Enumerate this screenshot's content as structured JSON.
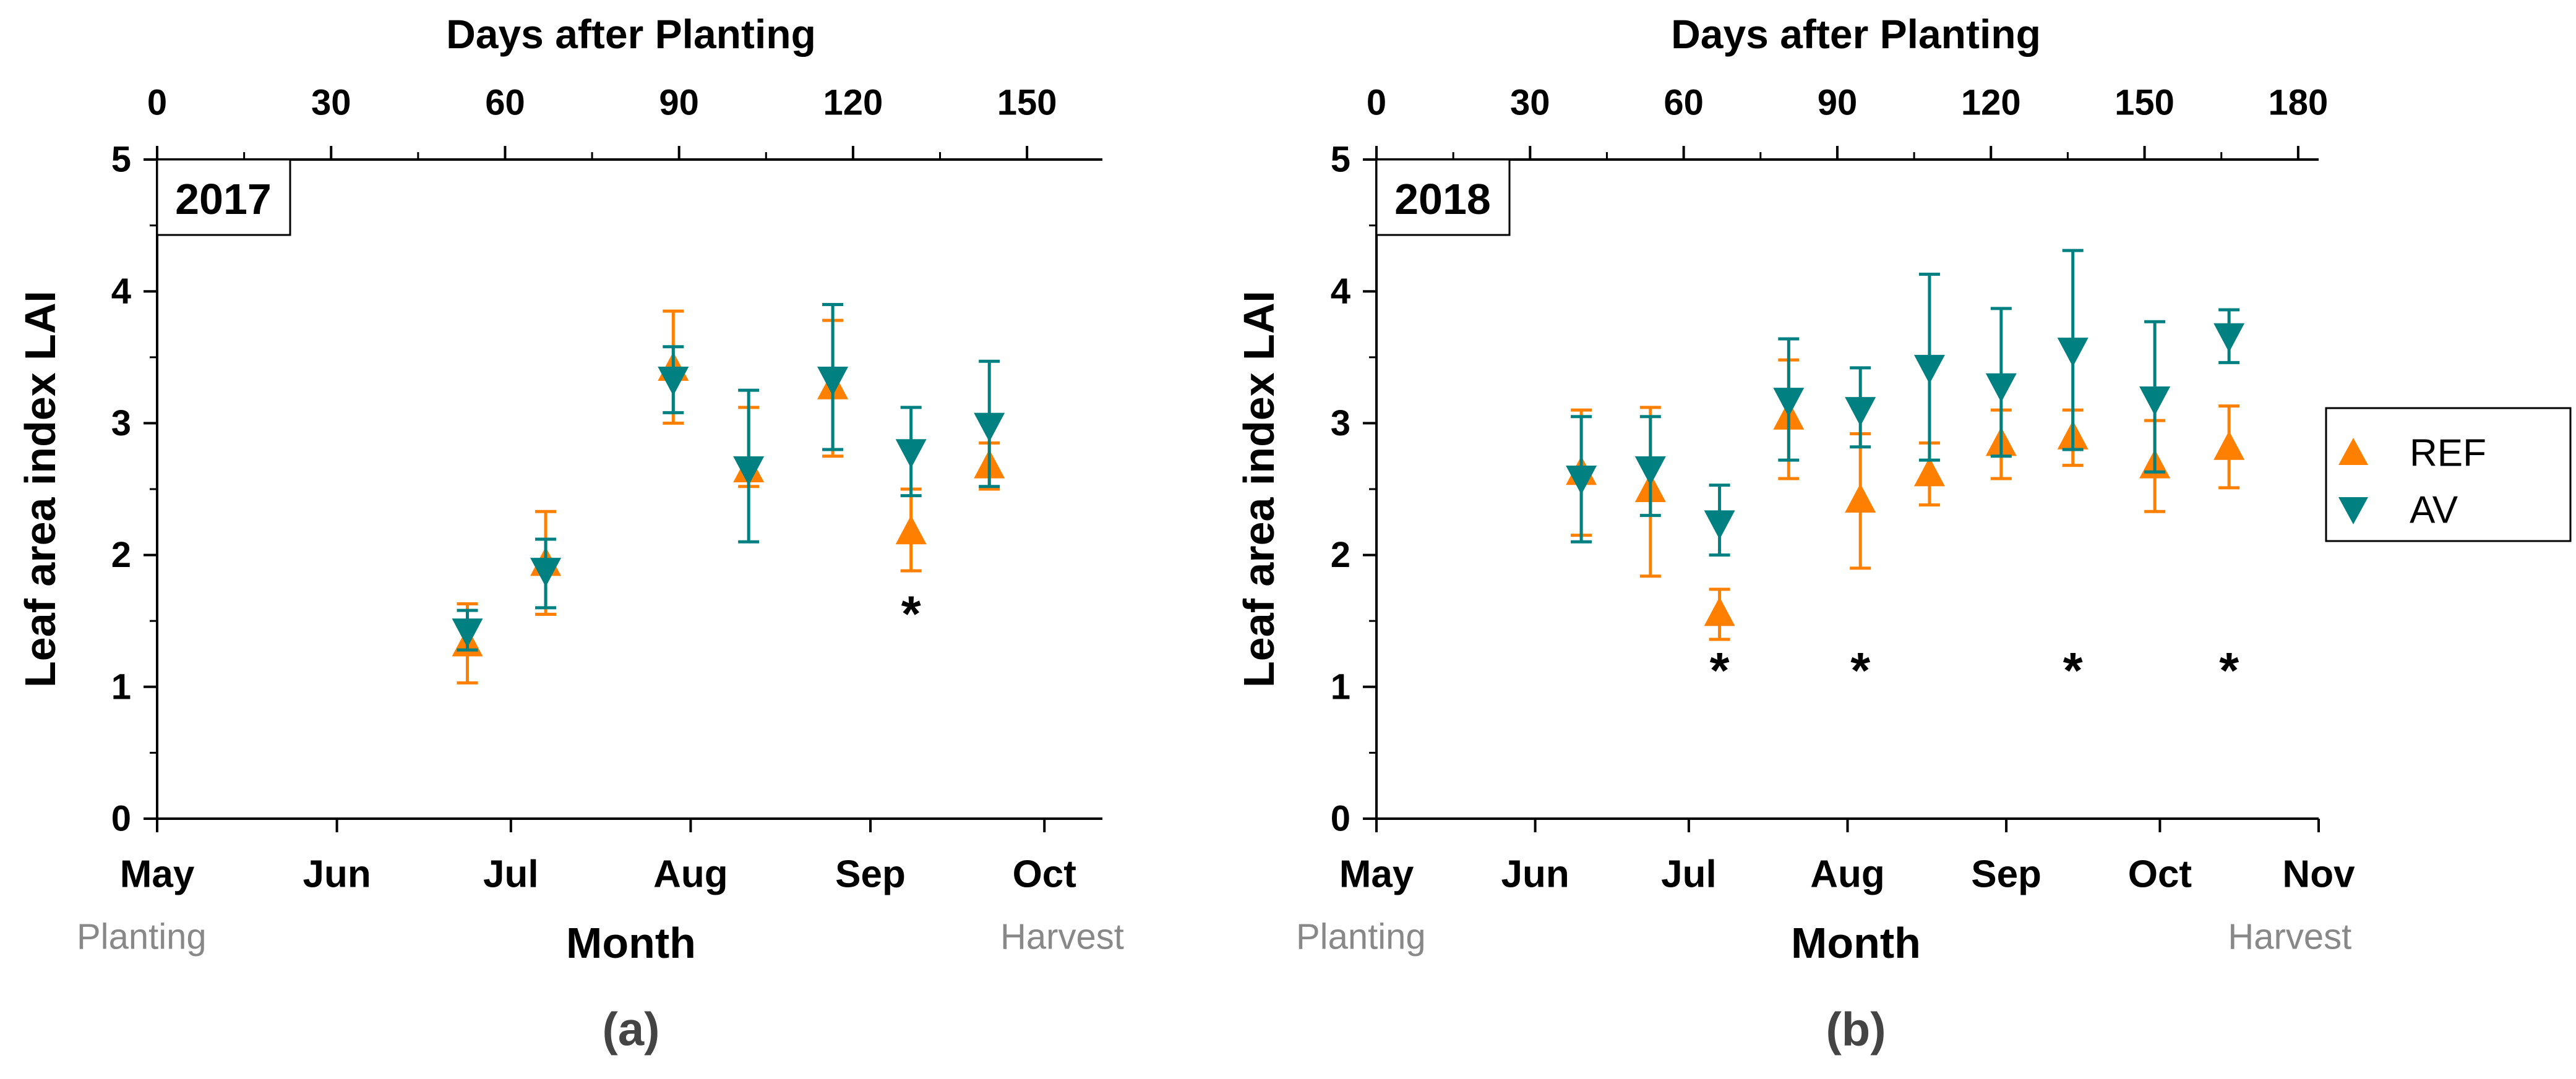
{
  "colors": {
    "ref": "#FF8000",
    "av": "#008080",
    "axis": "#000000",
    "note": "#888888",
    "panel_label": "#444444"
  },
  "legend": {
    "items": [
      {
        "key": "ref",
        "label": "REF",
        "marker": "triangle-up"
      },
      {
        "key": "av",
        "label": "AV",
        "marker": "triangle-down"
      }
    ]
  },
  "chart_data": [
    {
      "type": "scatter",
      "panel_label": "(a)",
      "year_label": "2017",
      "ylabel": "Leaf area index LAI",
      "xlabel": "Month",
      "top_xlabel": "Days after Planting",
      "ylim": [
        0,
        5
      ],
      "yticks": [
        "0",
        "1",
        "2",
        "3",
        "4",
        "5"
      ],
      "top_xlim": [
        0,
        163
      ],
      "top_xticks": [
        "0",
        "30",
        "60",
        "90",
        "120",
        "150"
      ],
      "month_ticks": [
        {
          "label": "May",
          "day": 0
        },
        {
          "label": "Jun",
          "day": 31
        },
        {
          "label": "Jul",
          "day": 61
        },
        {
          "label": "Aug",
          "day": 92
        },
        {
          "label": "Sep",
          "day": 123
        },
        {
          "label": "Oct",
          "day": 153
        }
      ],
      "notes": {
        "planting": "Planting",
        "harvest": "Harvest"
      },
      "series": [
        {
          "name": "REF",
          "key": "ref",
          "points": [
            {
              "day": 53.5,
              "y": 1.33,
              "err_low": 1.03,
              "err_high": 1.63
            },
            {
              "day": 67,
              "y": 1.94,
              "err_low": 1.55,
              "err_high": 2.33
            },
            {
              "day": 89,
              "y": 3.42,
              "err_low": 3.0,
              "err_high": 3.85
            },
            {
              "day": 102,
              "y": 2.65,
              "err_low": 2.52,
              "err_high": 3.12
            },
            {
              "day": 116.5,
              "y": 3.28,
              "err_low": 2.75,
              "err_high": 3.78
            },
            {
              "day": 130,
              "y": 2.18,
              "err_low": 1.88,
              "err_high": 2.5
            },
            {
              "day": 143.5,
              "y": 2.68,
              "err_low": 2.5,
              "err_high": 2.85
            }
          ]
        },
        {
          "name": "AV",
          "key": "av",
          "points": [
            {
              "day": 53.5,
              "y": 1.42,
              "err_low": 1.28,
              "err_high": 1.58
            },
            {
              "day": 67,
              "y": 1.88,
              "err_low": 1.6,
              "err_high": 2.12
            },
            {
              "day": 89,
              "y": 3.33,
              "err_low": 3.08,
              "err_high": 3.58
            },
            {
              "day": 102,
              "y": 2.65,
              "err_low": 2.1,
              "err_high": 3.25
            },
            {
              "day": 116.5,
              "y": 3.33,
              "err_low": 2.8,
              "err_high": 3.9
            },
            {
              "day": 130,
              "y": 2.78,
              "err_low": 2.45,
              "err_high": 3.12
            },
            {
              "day": 143.5,
              "y": 2.98,
              "err_low": 2.52,
              "err_high": 3.47
            }
          ]
        }
      ],
      "significance": [
        {
          "day": 130,
          "y": 1.55,
          "label": "*"
        }
      ]
    },
    {
      "type": "scatter",
      "panel_label": "(b)",
      "year_label": "2018",
      "ylabel": "Leaf area index LAI",
      "xlabel": "Month",
      "top_xlabel": "Days after Planting",
      "ylim": [
        0,
        5
      ],
      "yticks": [
        "0",
        "1",
        "2",
        "3",
        "4",
        "5"
      ],
      "top_xlim": [
        0,
        184
      ],
      "top_xticks": [
        "0",
        "30",
        "60",
        "90",
        "120",
        "150",
        "180"
      ],
      "month_ticks": [
        {
          "label": "May",
          "day": 0
        },
        {
          "label": "Jun",
          "day": 31
        },
        {
          "label": "Jul",
          "day": 61
        },
        {
          "label": "Aug",
          "day": 92
        },
        {
          "label": "Sep",
          "day": 123
        },
        {
          "label": "Oct",
          "day": 153
        },
        {
          "label": "Nov",
          "day": 184
        }
      ],
      "notes": {
        "planting": "Planting",
        "harvest": "Harvest"
      },
      "series": [
        {
          "name": "REF",
          "key": "ref",
          "points": [
            {
              "day": 40,
              "y": 2.63,
              "err_low": 2.15,
              "err_high": 3.1
            },
            {
              "day": 53.5,
              "y": 2.5,
              "err_low": 1.84,
              "err_high": 3.12
            },
            {
              "day": 67,
              "y": 1.56,
              "err_low": 1.36,
              "err_high": 1.74
            },
            {
              "day": 80.5,
              "y": 3.05,
              "err_low": 2.58,
              "err_high": 3.48
            },
            {
              "day": 94.5,
              "y": 2.42,
              "err_low": 1.9,
              "err_high": 2.92
            },
            {
              "day": 108,
              "y": 2.62,
              "err_low": 2.38,
              "err_high": 2.85
            },
            {
              "day": 122,
              "y": 2.85,
              "err_low": 2.58,
              "err_high": 3.1
            },
            {
              "day": 136,
              "y": 2.9,
              "err_low": 2.68,
              "err_high": 3.1
            },
            {
              "day": 152,
              "y": 2.68,
              "err_low": 2.33,
              "err_high": 3.02
            },
            {
              "day": 166.5,
              "y": 2.82,
              "err_low": 2.51,
              "err_high": 3.13
            }
          ]
        },
        {
          "name": "AV",
          "key": "av",
          "points": [
            {
              "day": 40,
              "y": 2.58,
              "err_low": 2.1,
              "err_high": 3.05
            },
            {
              "day": 53.5,
              "y": 2.65,
              "err_low": 2.3,
              "err_high": 3.05
            },
            {
              "day": 67,
              "y": 2.24,
              "err_low": 2.0,
              "err_high": 2.53
            },
            {
              "day": 80.5,
              "y": 3.17,
              "err_low": 2.72,
              "err_high": 3.64
            },
            {
              "day": 94.5,
              "y": 3.1,
              "err_low": 2.82,
              "err_high": 3.42
            },
            {
              "day": 108,
              "y": 3.42,
              "err_low": 2.72,
              "err_high": 4.13
            },
            {
              "day": 122,
              "y": 3.28,
              "err_low": 2.75,
              "err_high": 3.87
            },
            {
              "day": 136,
              "y": 3.55,
              "err_low": 2.8,
              "err_high": 4.31
            },
            {
              "day": 152,
              "y": 3.18,
              "err_low": 2.63,
              "err_high": 3.77
            },
            {
              "day": 166.5,
              "y": 3.66,
              "err_low": 3.46,
              "err_high": 3.86
            }
          ]
        }
      ],
      "significance": [
        {
          "day": 67,
          "y": 1.12,
          "label": "*"
        },
        {
          "day": 94.5,
          "y": 1.12,
          "label": "*"
        },
        {
          "day": 136,
          "y": 1.12,
          "label": "*"
        },
        {
          "day": 166.5,
          "y": 1.12,
          "label": "*"
        }
      ]
    }
  ]
}
